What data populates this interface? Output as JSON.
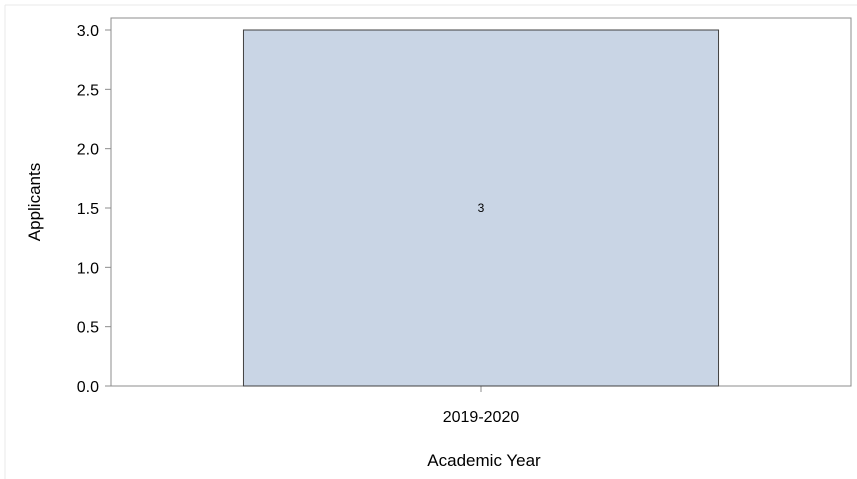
{
  "chart_data": {
    "type": "bar",
    "categories": [
      "2019-2020"
    ],
    "values": [
      3
    ],
    "data_labels": [
      "3"
    ],
    "title": "",
    "xlabel": "Academic Year",
    "ylabel": "Applicants",
    "ylim": [
      0,
      3.0
    ],
    "yticks": [
      "0.0",
      "0.5",
      "1.0",
      "1.5",
      "2.0",
      "2.5",
      "3.0"
    ],
    "grid": false,
    "legend": "none",
    "bar_color": "#c9d5e5",
    "bar_edge_color": "#404040"
  }
}
